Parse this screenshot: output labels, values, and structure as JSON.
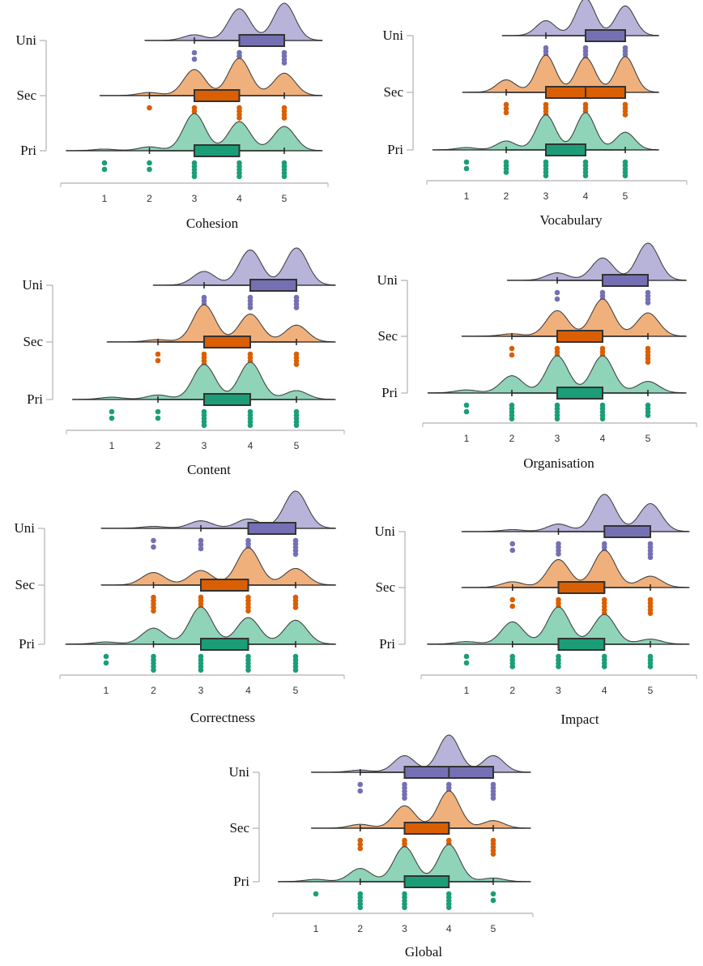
{
  "chart_data": [
    {
      "type": "raincloud",
      "title": "Cohesion",
      "xlim": [
        0,
        6
      ],
      "x_ticks": [
        1,
        2,
        3,
        4,
        5
      ],
      "groups_order": [
        "Uni",
        "Sec",
        "Pri"
      ],
      "groups": {
        "Uni": {
          "density_weights": {
            "3": 0.15,
            "4": 0.85,
            "5": 1
          },
          "box": {
            "whisker_low": 3,
            "q1": 4,
            "median": 4,
            "q3": 5,
            "whisker_high": 5
          },
          "points": [
            [
              3,
              2
            ],
            [
              4,
              4
            ],
            [
              5,
              4
            ]
          ]
        },
        "Sec": {
          "density_weights": {
            "2": 0.08,
            "3": 0.7,
            "4": 1,
            "5": 0.6
          },
          "box": {
            "whisker_low": 2,
            "q1": 3,
            "median": 4,
            "q3": 4,
            "whisker_high": 5
          },
          "points": [
            [
              2,
              1
            ],
            [
              3,
              4
            ],
            [
              4,
              4
            ],
            [
              5,
              4
            ]
          ]
        },
        "Pri": {
          "density_weights": {
            "1": 0.04,
            "2": 0.1,
            "3": 1,
            "4": 0.78,
            "5": 0.65
          },
          "box": {
            "whisker_low": 2,
            "q1": 3,
            "median": 4,
            "q3": 4,
            "whisker_high": 5
          },
          "points": [
            [
              1,
              2
            ],
            [
              2,
              2
            ],
            [
              3,
              5
            ],
            [
              4,
              5
            ],
            [
              5,
              5
            ]
          ]
        }
      }
    },
    {
      "type": "raincloud",
      "title": "Vocabulary",
      "xlim": [
        0,
        6
      ],
      "x_ticks": [
        1,
        2,
        3,
        4,
        5
      ],
      "groups_order": [
        "Uni",
        "Sec",
        "Pri"
      ],
      "groups": {
        "Uni": {
          "density_weights": {
            "3": 0.4,
            "4": 1,
            "5": 0.8
          },
          "box": {
            "whisker_low": 3,
            "q1": 4,
            "median": 4,
            "q3": 5,
            "whisker_high": 5
          },
          "points": [
            [
              3,
              4
            ],
            [
              4,
              4
            ],
            [
              5,
              4
            ]
          ]
        },
        "Sec": {
          "density_weights": {
            "2": 0.25,
            "3": 0.75,
            "4": 0.7,
            "5": 0.72
          },
          "box": {
            "whisker_low": 2,
            "q1": 3,
            "median": 4,
            "q3": 5,
            "whisker_high": 5
          },
          "points": [
            [
              2,
              3
            ],
            [
              3,
              5
            ],
            [
              4,
              4
            ],
            [
              5,
              4
            ]
          ]
        },
        "Pri": {
          "density_weights": {
            "1": 0.05,
            "2": 0.2,
            "3": 0.8,
            "4": 0.85,
            "5": 0.4
          },
          "box": {
            "whisker_low": 2,
            "q1": 3,
            "median": 4,
            "q3": 4,
            "whisker_high": 5
          },
          "points": [
            [
              1,
              2
            ],
            [
              2,
              4
            ],
            [
              3,
              5
            ],
            [
              4,
              5
            ],
            [
              5,
              5
            ]
          ]
        }
      }
    },
    {
      "type": "raincloud",
      "title": "Content",
      "xlim": [
        0,
        6
      ],
      "x_ticks": [
        1,
        2,
        3,
        4,
        5
      ],
      "groups_order": [
        "Uni",
        "Sec",
        "Pri"
      ],
      "groups": {
        "Uni": {
          "density_weights": {
            "3": 0.35,
            "4": 0.9,
            "5": 0.95
          },
          "box": {
            "whisker_low": 3,
            "q1": 4,
            "median": 4,
            "q3": 5,
            "whisker_high": 5
          },
          "points": [
            [
              3,
              5
            ],
            [
              4,
              4
            ],
            [
              5,
              4
            ]
          ]
        },
        "Sec": {
          "density_weights": {
            "2": 0.06,
            "3": 1,
            "4": 0.75,
            "5": 0.45
          },
          "box": {
            "whisker_low": 2,
            "q1": 3,
            "median": 4,
            "q3": 4,
            "whisker_high": 5
          },
          "points": [
            [
              2,
              2
            ],
            [
              3,
              5
            ],
            [
              4,
              4
            ],
            [
              5,
              4
            ]
          ]
        },
        "Pri": {
          "density_weights": {
            "1": 0.05,
            "2": 0.1,
            "3": 0.8,
            "4": 0.85,
            "5": 0.2
          },
          "box": {
            "whisker_low": 2,
            "q1": 3,
            "median": 4,
            "q3": 4,
            "whisker_high": 5
          },
          "points": [
            [
              1,
              2
            ],
            [
              2,
              2
            ],
            [
              3,
              5
            ],
            [
              4,
              5
            ],
            [
              5,
              5
            ]
          ]
        }
      }
    },
    {
      "type": "raincloud",
      "title": "Organisation",
      "xlim": [
        0,
        6
      ],
      "x_ticks": [
        1,
        2,
        3,
        4,
        5
      ],
      "groups_order": [
        "Uni",
        "Sec",
        "Pri"
      ],
      "groups": {
        "Uni": {
          "density_weights": {
            "3": 0.2,
            "4": 0.6,
            "5": 1
          },
          "box": {
            "whisker_low": 3,
            "q1": 4,
            "median": 5,
            "q3": 5,
            "whisker_high": 5
          },
          "points": [
            [
              3,
              2
            ],
            [
              4,
              4
            ],
            [
              5,
              4
            ]
          ]
        },
        "Sec": {
          "density_weights": {
            "2": 0.05,
            "3": 0.55,
            "4": 0.8,
            "5": 0.5
          },
          "box": {
            "whisker_low": 2,
            "q1": 3,
            "median": 4,
            "q3": 4,
            "whisker_high": 5
          },
          "points": [
            [
              2,
              2
            ],
            [
              3,
              5
            ],
            [
              4,
              5
            ],
            [
              5,
              5
            ]
          ]
        },
        "Pri": {
          "density_weights": {
            "1": 0.05,
            "2": 0.3,
            "3": 0.65,
            "4": 0.65,
            "5": 0.2
          },
          "box": {
            "whisker_low": 2,
            "q1": 3,
            "median": 3,
            "q3": 4,
            "whisker_high": 5
          },
          "points": [
            [
              1,
              2
            ],
            [
              2,
              5
            ],
            [
              3,
              5
            ],
            [
              4,
              5
            ],
            [
              5,
              4
            ]
          ]
        }
      }
    },
    {
      "type": "raincloud",
      "title": "Correctness",
      "xlim": [
        0,
        6
      ],
      "x_ticks": [
        1,
        2,
        3,
        4,
        5
      ],
      "groups_order": [
        "Uni",
        "Sec",
        "Pri"
      ],
      "groups": {
        "Uni": {
          "density_weights": {
            "2": 0.05,
            "3": 0.2,
            "4": 0.25,
            "5": 1
          },
          "box": {
            "whisker_low": 3,
            "q1": 4,
            "median": 5,
            "q3": 5,
            "whisker_high": 5
          },
          "points": [
            [
              2,
              2
            ],
            [
              3,
              3
            ],
            [
              4,
              5
            ],
            [
              5,
              5
            ]
          ]
        },
        "Sec": {
          "density_weights": {
            "2": 0.3,
            "3": 0.35,
            "4": 0.9,
            "5": 0.4
          },
          "box": {
            "whisker_low": 2,
            "q1": 3,
            "median": 4,
            "q3": 4,
            "whisker_high": 5
          },
          "points": [
            [
              2,
              5
            ],
            [
              3,
              5
            ],
            [
              4,
              5
            ],
            [
              5,
              4
            ]
          ]
        },
        "Pri": {
          "density_weights": {
            "1": 0.04,
            "2": 0.3,
            "3": 0.7,
            "4": 0.5,
            "5": 0.45
          },
          "box": {
            "whisker_low": 2,
            "q1": 3,
            "median": 3,
            "q3": 4,
            "whisker_high": 5
          },
          "points": [
            [
              1,
              2
            ],
            [
              2,
              5
            ],
            [
              3,
              5
            ],
            [
              4,
              5
            ],
            [
              5,
              5
            ]
          ]
        }
      }
    },
    {
      "type": "raincloud",
      "title": "Impact",
      "xlim": [
        0,
        6
      ],
      "x_ticks": [
        1,
        2,
        3,
        4,
        5
      ],
      "groups_order": [
        "Uni",
        "Sec",
        "Pri"
      ],
      "groups": {
        "Uni": {
          "density_weights": {
            "2": 0.05,
            "3": 0.2,
            "4": 1,
            "5": 0.75
          },
          "box": {
            "whisker_low": 3,
            "q1": 4,
            "median": 5,
            "q3": 5,
            "whisker_high": 5
          },
          "points": [
            [
              2,
              2
            ],
            [
              3,
              4
            ],
            [
              4,
              5
            ],
            [
              5,
              5
            ]
          ]
        },
        "Sec": {
          "density_weights": {
            "2": 0.15,
            "3": 0.75,
            "4": 1,
            "5": 0.3
          },
          "box": {
            "whisker_low": 2,
            "q1": 3,
            "median": 4,
            "q3": 4,
            "whisker_high": 5
          },
          "points": [
            [
              2,
              2
            ],
            [
              3,
              5
            ],
            [
              4,
              5
            ],
            [
              5,
              5
            ]
          ]
        },
        "Pri": {
          "density_weights": {
            "1": 0.05,
            "2": 0.45,
            "3": 0.75,
            "4": 0.6,
            "5": 0.1
          },
          "box": {
            "whisker_low": 2,
            "q1": 3,
            "median": 3,
            "q3": 4,
            "whisker_high": 5
          },
          "points": [
            [
              1,
              2
            ],
            [
              2,
              4
            ],
            [
              3,
              4
            ],
            [
              4,
              4
            ],
            [
              5,
              4
            ]
          ]
        }
      }
    },
    {
      "type": "raincloud",
      "title": "Global",
      "xlim": [
        0,
        6
      ],
      "x_ticks": [
        1,
        2,
        3,
        4,
        5
      ],
      "groups_order": [
        "Uni",
        "Sec",
        "Pri"
      ],
      "groups": {
        "Uni": {
          "density_weights": {
            "2": 0.05,
            "3": 0.4,
            "4": 0.9,
            "5": 0.4
          },
          "box": {
            "whisker_low": 2,
            "q1": 3,
            "median": 4,
            "q3": 5,
            "whisker_high": 5
          },
          "points": [
            [
              2,
              2
            ],
            [
              3,
              5
            ],
            [
              4,
              5
            ],
            [
              5,
              5
            ]
          ]
        },
        "Sec": {
          "density_weights": {
            "2": 0.1,
            "3": 0.6,
            "4": 1,
            "5": 0.2
          },
          "box": {
            "whisker_low": 2,
            "q1": 3,
            "median": 4,
            "q3": 4,
            "whisker_high": 5
          },
          "points": [
            [
              2,
              3
            ],
            [
              3,
              5
            ],
            [
              4,
              5
            ],
            [
              5,
              5
            ]
          ]
        },
        "Pri": {
          "density_weights": {
            "1": 0.05,
            "2": 0.3,
            "3": 0.8,
            "4": 0.85,
            "5": 0.08
          },
          "box": {
            "whisker_low": 2,
            "q1": 3,
            "median": 3,
            "q3": 4,
            "whisker_high": 5
          },
          "points": [
            [
              1,
              1
            ],
            [
              2,
              5
            ],
            [
              3,
              5
            ],
            [
              4,
              5
            ],
            [
              5,
              2
            ]
          ]
        }
      }
    }
  ],
  "colors": {
    "Uni": {
      "density": "#b7b3d9",
      "box": "#7570b3",
      "points": "#7570b3"
    },
    "Sec": {
      "density": "#f0b07c",
      "box": "#d95f02",
      "points": "#d95f02"
    },
    "Pri": {
      "density": "#8fd3b9",
      "box": "#1b9e77",
      "points": "#1b9e77"
    }
  }
}
